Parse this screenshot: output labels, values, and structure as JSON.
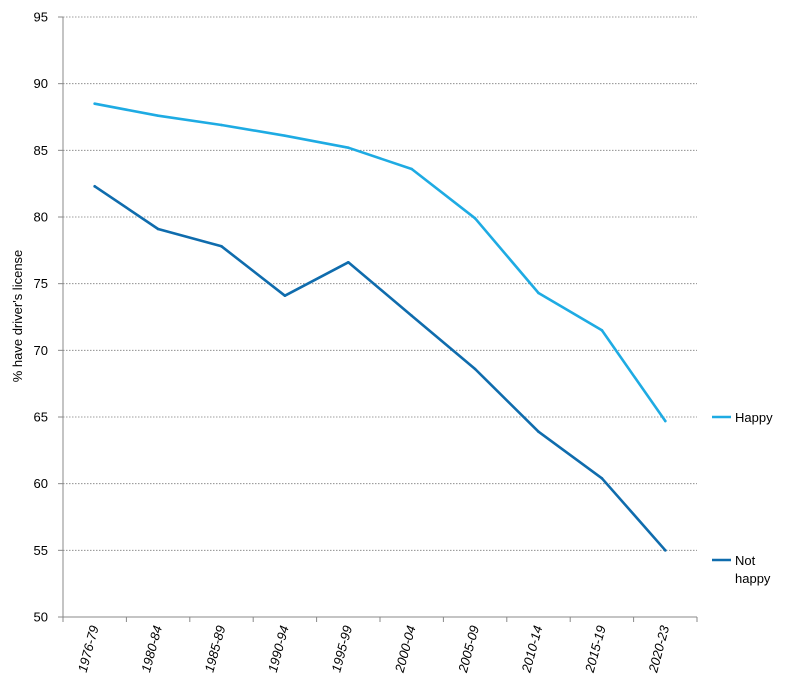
{
  "chart_data": {
    "type": "line",
    "title": "",
    "xlabel": "",
    "ylabel": "% have driver's license",
    "ylim": [
      50,
      95
    ],
    "yticks": [
      50,
      55,
      60,
      65,
      70,
      75,
      80,
      85,
      90,
      95
    ],
    "grid": true,
    "legend": "right",
    "categories": [
      "1976-79",
      "1980-84",
      "1985-89",
      "1990-94",
      "1995-99",
      "2000-04",
      "2005-09",
      "2010-14",
      "2015-19",
      "2020-23"
    ],
    "series": [
      {
        "name": "Happy",
        "color": "#1eabe3",
        "values": [
          88.5,
          87.6,
          86.9,
          86.1,
          85.2,
          83.6,
          79.9,
          74.3,
          71.5,
          64.7
        ]
      },
      {
        "name": "Not happy",
        "color": "#0f6cad",
        "values": [
          82.3,
          79.1,
          77.8,
          74.1,
          76.6,
          72.6,
          68.6,
          63.9,
          60.4,
          55.0
        ]
      }
    ]
  }
}
